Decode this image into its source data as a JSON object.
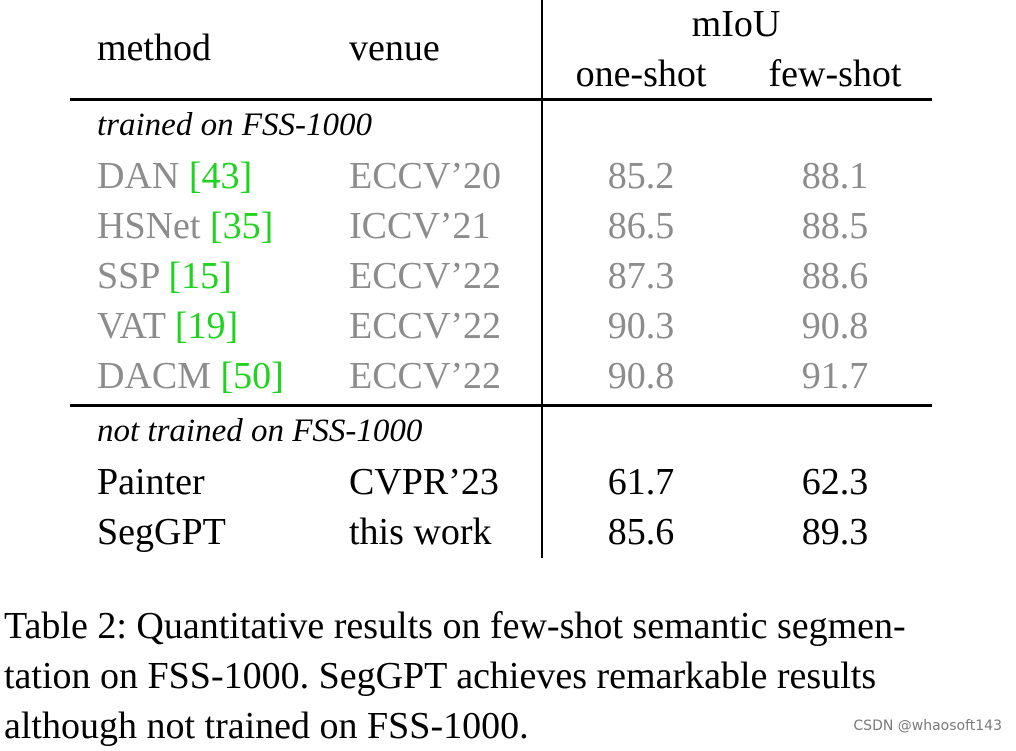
{
  "table": {
    "header": {
      "method": "method",
      "venue": "venue",
      "metric": "mIoU",
      "one_shot": "one-shot",
      "few_shot": "few-shot"
    },
    "sections": [
      {
        "title": "trained on FSS-1000",
        "rows": [
          {
            "method": "DAN",
            "cite": "[43]",
            "venue": "ECCV’20",
            "one_shot": "85.2",
            "few_shot": "88.1"
          },
          {
            "method": "HSNet",
            "cite": "[35]",
            "venue": "ICCV’21",
            "one_shot": "86.5",
            "few_shot": "88.5"
          },
          {
            "method": "SSP",
            "cite": "[15]",
            "venue": "ECCV’22",
            "one_shot": "87.3",
            "few_shot": "88.6"
          },
          {
            "method": "VAT",
            "cite": "[19]",
            "venue": "ECCV’22",
            "one_shot": "90.3",
            "few_shot": "90.8"
          },
          {
            "method": "DACM",
            "cite": "[50]",
            "venue": "ECCV’22",
            "one_shot": "90.8",
            "few_shot": "91.7"
          }
        ]
      },
      {
        "title": "not trained on FSS-1000",
        "rows": [
          {
            "method": "Painter",
            "venue": "CVPR’23",
            "one_shot": "61.7",
            "few_shot": "62.3"
          },
          {
            "method": "SegGPT",
            "venue": "this work",
            "one_shot": "85.6",
            "few_shot": "89.3"
          }
        ]
      }
    ]
  },
  "caption": {
    "lines": [
      "Table 2: Quantitative results on few-shot semantic segmen-",
      "tation on FSS-1000. SegGPT achieves remarkable results",
      "although not trained on FSS-1000."
    ]
  },
  "watermark": "CSDN @whaosoft143",
  "colors": {
    "gray_text": "#8c8c8c",
    "citation": "#1ed41e",
    "text": "#000000"
  }
}
